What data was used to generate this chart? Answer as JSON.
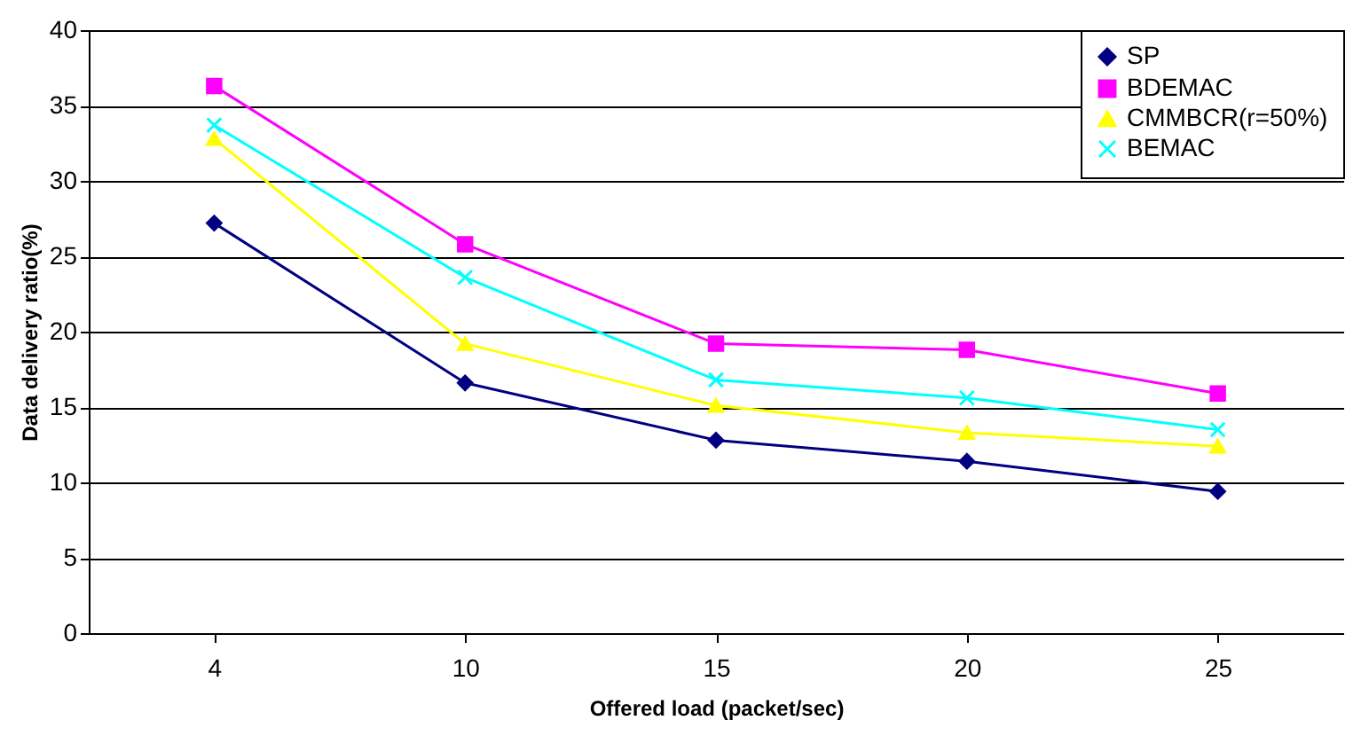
{
  "chart_data": {
    "type": "line",
    "xlabel": "Offered load (packet/sec)",
    "ylabel": "Data delivery ratio(%)",
    "categories": [
      "4",
      "10",
      "15",
      "20",
      "25"
    ],
    "series": [
      {
        "name": "SP",
        "color": "#000080",
        "marker": "diamond",
        "values": [
          27.2,
          16.6,
          12.8,
          11.4,
          9.4
        ]
      },
      {
        "name": "BDEMAC",
        "color": "#ff00ff",
        "marker": "square",
        "values": [
          36.3,
          25.8,
          19.2,
          18.8,
          15.9
        ]
      },
      {
        "name": "CMMBCR(r=50%)",
        "color": "#ffff00",
        "marker": "triangle",
        "values": [
          32.8,
          19.2,
          15.1,
          13.3,
          12.4
        ]
      },
      {
        "name": "BEMAC",
        "color": "#00ffff",
        "marker": "cross",
        "values": [
          33.7,
          23.6,
          16.8,
          15.6,
          13.5
        ]
      }
    ],
    "ylim": [
      0,
      40
    ],
    "yticks": [
      0,
      5,
      10,
      15,
      20,
      25,
      30,
      35,
      40
    ],
    "grid": "y",
    "legend": "top right",
    "line_style": "solid"
  }
}
